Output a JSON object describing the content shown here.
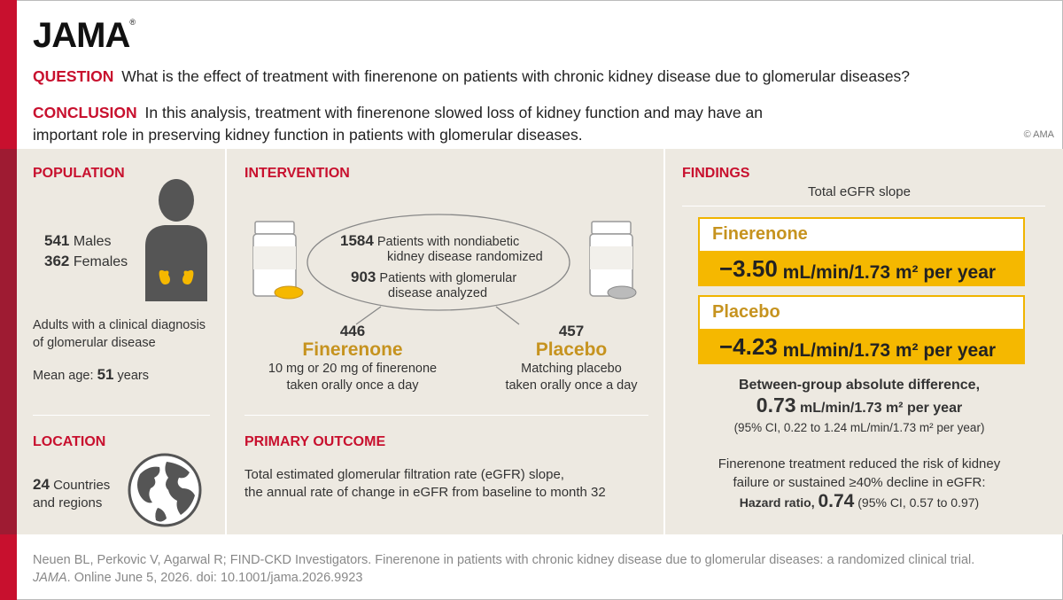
{
  "logo": "JAMA",
  "question": {
    "label": "QUESTION",
    "text": "What is the effect of treatment with finerenone on patients with chronic kidney disease due to glomerular diseases?"
  },
  "conclusion": {
    "label": "CONCLUSION",
    "text": "In this analysis, treatment with finerenone slowed loss of kidney function and may have an important role in preserving kidney function in patients with glomerular diseases."
  },
  "copyright": "© AMA",
  "population": {
    "title": "POPULATION",
    "males_num": "541",
    "males_label": "Males",
    "females_num": "362",
    "females_label": "Females",
    "desc_line1": "Adults with a clinical diagnosis",
    "desc_line2": "of glomerular disease",
    "age_label": "Mean age:",
    "age_num": "51",
    "age_unit": "years"
  },
  "location": {
    "title": "LOCATION",
    "count": "24",
    "label1": "Countries",
    "label2": "and regions"
  },
  "intervention": {
    "title": "INTERVENTION",
    "randomized_num": "1584",
    "randomized_line1": "Patients with nondiabetic",
    "randomized_line2": "kidney disease randomized",
    "analyzed_num": "903",
    "analyzed_line1": "Patients with glomerular",
    "analyzed_line2": "disease analyzed",
    "arm1_num": "446",
    "arm1_name": "Finerenone",
    "arm1_line1": "10 mg or 20 mg of finerenone",
    "arm1_line2": "taken orally once a day",
    "arm2_num": "457",
    "arm2_name": "Placebo",
    "arm2_line1": "Matching placebo",
    "arm2_line2": "taken orally once a day"
  },
  "outcome": {
    "title": "PRIMARY OUTCOME",
    "line1": "Total estimated glomerular filtration rate (eGFR) slope,",
    "line2": "the annual rate of change in eGFR from baseline to month 32"
  },
  "findings": {
    "title": "FINDINGS",
    "subtitle": "Total eGFR slope",
    "fin_label": "Finerenone",
    "fin_value": "−3.50",
    "fin_unit": "mL/min/1.73 m² per year",
    "pla_label": "Placebo",
    "pla_value": "−4.23",
    "pla_unit": "mL/min/1.73 m² per year",
    "diff_label": "Between-group absolute difference,",
    "diff_value": "0.73",
    "diff_unit": "mL/min/1.73 m² per year",
    "diff_ci": "(95% CI, 0.22 to 1.24 mL/min/1.73 m² per year)",
    "risk_line1": "Finerenone treatment reduced the risk of kidney",
    "risk_line2": "failure or sustained ≥40% decline in eGFR:",
    "hr_label": "Hazard ratio,",
    "hr_value": "0.74",
    "hr_ci": "(95% CI, 0.57 to 0.97)"
  },
  "footer": {
    "line1": "Neuen BL, Perkovic V, Agarwal R; FIND-CKD Investigators. Finerenone in patients with chronic kidney disease due to glomerular diseases: a randomized clinical trial.",
    "journal": "JAMA",
    "line2": ". Online June 5, 2026. doi: 10.1001/jama.2026.9923"
  },
  "colors": {
    "red": "#c8102e",
    "gold": "#c6931f",
    "yellow": "#f5b800",
    "panel": "#ede9e1"
  }
}
